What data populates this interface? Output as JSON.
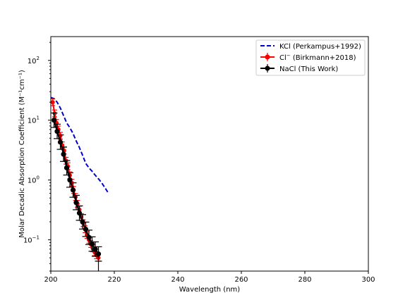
{
  "chart_data": {
    "type": "line",
    "title": "",
    "xlabel": "Wavelength (nm)",
    "ylabel": "Molar Decadic Absorption Coefficient (M⁻¹cm⁻¹)",
    "xlim": [
      200,
      300
    ],
    "ylim": [
      0.03,
      250
    ],
    "yscale": "log",
    "grid": false,
    "legend_position": "top-right",
    "x_ticks": [
      "200",
      "220",
      "240",
      "260",
      "280",
      "300"
    ],
    "y_ticks": [
      {
        "base": "10",
        "exp": "−1",
        "value": 0.1
      },
      {
        "base": "10",
        "exp": "0",
        "value": 1
      },
      {
        "base": "10",
        "exp": "1",
        "value": 10
      },
      {
        "base": "10",
        "exp": "2",
        "value": 100
      }
    ],
    "series": [
      {
        "name": "KCl (Perkampus+1992)",
        "color": "#0000cc",
        "style": "dashed",
        "points": [
          {
            "x": 200,
            "y": 24
          },
          {
            "x": 201,
            "y": 23
          },
          {
            "x": 202,
            "y": 20
          },
          {
            "x": 203,
            "y": 16
          },
          {
            "x": 204,
            "y": 12
          },
          {
            "x": 205,
            "y": 9
          },
          {
            "x": 206,
            "y": 7.5
          },
          {
            "x": 207,
            "y": 6
          },
          {
            "x": 208,
            "y": 4.5
          },
          {
            "x": 209,
            "y": 3.5
          },
          {
            "x": 210,
            "y": 2.6
          },
          {
            "x": 211,
            "y": 1.9
          },
          {
            "x": 212,
            "y": 1.6
          },
          {
            "x": 213,
            "y": 1.4
          },
          {
            "x": 214,
            "y": 1.2
          },
          {
            "x": 215,
            "y": 1.05
          },
          {
            "x": 216,
            "y": 0.9
          },
          {
            "x": 217,
            "y": 0.75
          },
          {
            "x": 218,
            "y": 0.62
          }
        ]
      },
      {
        "name_prefix": "Cl",
        "name_sup": "−",
        "name_suffix": " (Birkmann+2018)",
        "color": "#ff0000",
        "style": "errorbar",
        "points": [
          {
            "x": 200.6,
            "y": 20
          },
          {
            "x": 201.2,
            "y": 13
          },
          {
            "x": 201.8,
            "y": 9
          },
          {
            "x": 202.4,
            "y": 7
          },
          {
            "x": 203.0,
            "y": 5.5
          },
          {
            "x": 203.6,
            "y": 3.8
          },
          {
            "x": 204.2,
            "y": 3.1
          },
          {
            "x": 204.8,
            "y": 2.1
          },
          {
            "x": 205.4,
            "y": 1.7
          },
          {
            "x": 206.0,
            "y": 1.2
          },
          {
            "x": 206.6,
            "y": 0.9
          },
          {
            "x": 207.2,
            "y": 0.68
          },
          {
            "x": 207.8,
            "y": 0.52
          },
          {
            "x": 208.4,
            "y": 0.4
          },
          {
            "x": 209.0,
            "y": 0.32
          },
          {
            "x": 209.6,
            "y": 0.24
          },
          {
            "x": 210.2,
            "y": 0.19
          },
          {
            "x": 210.8,
            "y": 0.15
          },
          {
            "x": 211.4,
            "y": 0.12
          },
          {
            "x": 212.0,
            "y": 0.1
          },
          {
            "x": 212.6,
            "y": 0.085
          },
          {
            "x": 213.2,
            "y": 0.072
          },
          {
            "x": 213.8,
            "y": 0.062
          },
          {
            "x": 214.4,
            "y": 0.055
          },
          {
            "x": 215.0,
            "y": 0.05
          }
        ]
      },
      {
        "name": "NaCl (This Work)",
        "color": "#000000",
        "style": "errorbar",
        "points": [
          {
            "x": 201,
            "y": 10
          },
          {
            "x": 202,
            "y": 6.5
          },
          {
            "x": 203,
            "y": 4.3
          },
          {
            "x": 204,
            "y": 2.7
          },
          {
            "x": 205,
            "y": 1.6
          },
          {
            "x": 206,
            "y": 1.0
          },
          {
            "x": 207,
            "y": 0.68
          },
          {
            "x": 208,
            "y": 0.42
          },
          {
            "x": 209,
            "y": 0.28
          },
          {
            "x": 210,
            "y": 0.2
          },
          {
            "x": 211,
            "y": 0.15
          },
          {
            "x": 212,
            "y": 0.11
          },
          {
            "x": 213,
            "y": 0.085
          },
          {
            "x": 214,
            "y": 0.07
          },
          {
            "x": 215,
            "y": 0.058
          }
        ]
      }
    ]
  }
}
